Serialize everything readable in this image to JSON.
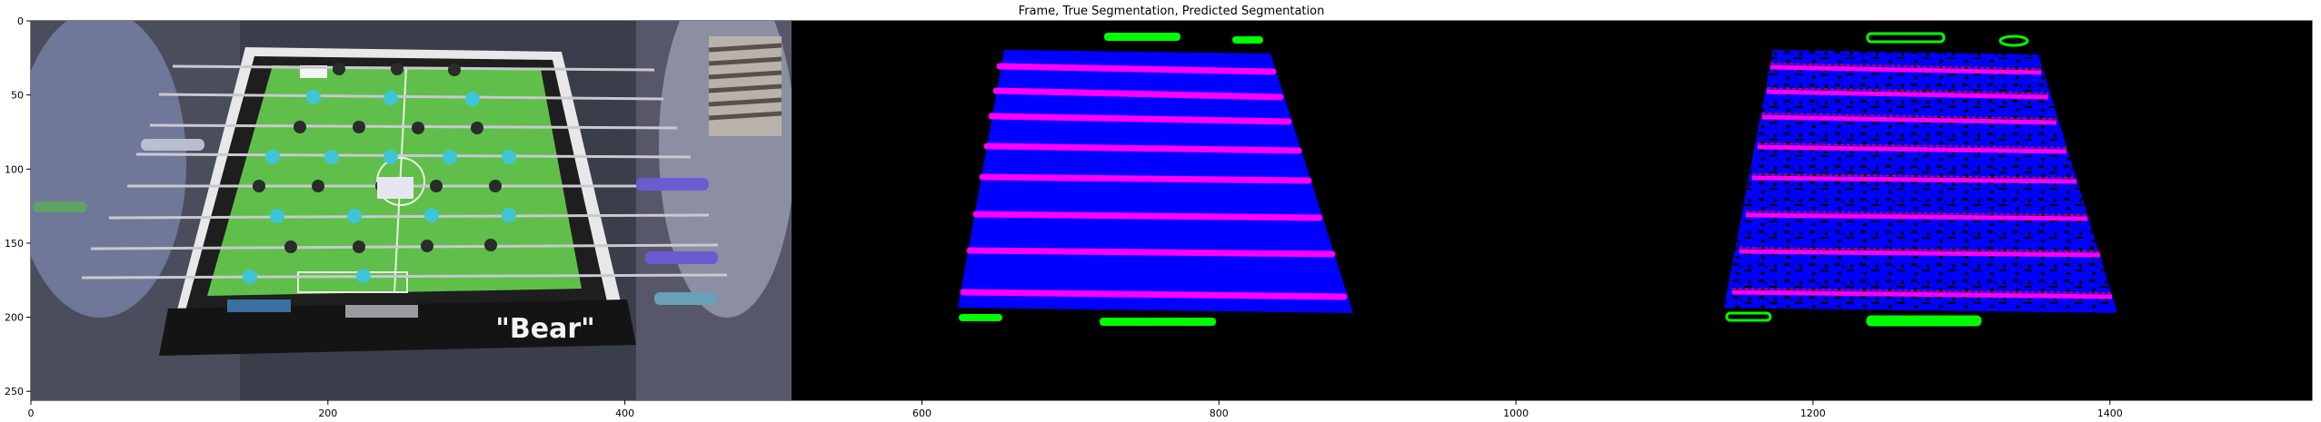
{
  "figure": {
    "title": "Frame, True Segmentation, Predicted Segmentation",
    "table_text": "\"Bear\"",
    "x_ticks": [
      "0",
      "200",
      "400",
      "600",
      "800",
      "1000",
      "1200",
      "1400"
    ],
    "y_ticks": [
      "0",
      "50",
      "100",
      "150",
      "200",
      "250"
    ],
    "x_range": [
      0,
      1536
    ],
    "y_range": [
      0,
      256
    ],
    "panels": [
      "Frame",
      "True Segmentation",
      "Predicted Segmentation"
    ],
    "colors": {
      "background": "#000000",
      "table_class": "#0000ff",
      "rod_class": "#ff00ff",
      "rod_edge_class": "#ff0000",
      "goal_class": "#00ff00",
      "field_green": "#5fbf4a",
      "player_cyan": "#3ec6d8"
    }
  }
}
